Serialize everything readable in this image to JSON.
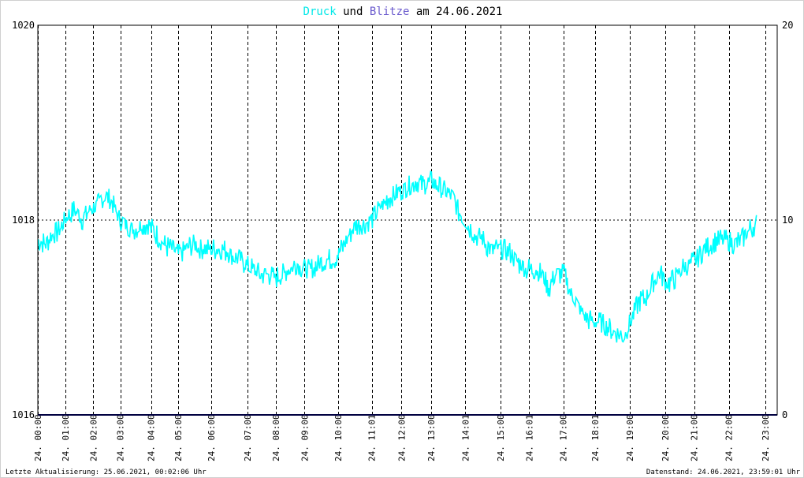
{
  "title": {
    "part1": "Druck",
    "part2": " und ",
    "part3": "Blitze",
    "part4": " am 24.06.2021",
    "color_druck": "#00e8e8",
    "color_blitze": "#6a5acd",
    "color_rest": "#000000"
  },
  "footer": {
    "left": "Letzte Aktualisierung: 25.06.2021, 00:02:06 Uhr",
    "right": "Datenstand: 24.06.2021, 23:59:01 Uhr"
  },
  "chart_data": {
    "type": "line",
    "title": "Druck und Blitze am 24.06.2021",
    "left_axis": {
      "range": [
        1016,
        1020
      ],
      "ticks": [
        "1020",
        "1018",
        "1016"
      ]
    },
    "right_axis": {
      "range": [
        0,
        20
      ],
      "ticks": [
        "20",
        "10",
        "0"
      ]
    },
    "x_labels": [
      "24. 00:00",
      "24. 01:00",
      "24. 02:00",
      "24. 03:00",
      "24. 04:00",
      "24. 05:00",
      "24. 06:00",
      "24. 07:00",
      "24. 08:00",
      "24. 09:00",
      "24. 10:00",
      "24. 11:01",
      "24. 12:00",
      "24. 13:00",
      "24. 14:01",
      "24. 15:00",
      "24. 16:01",
      "24. 17:00",
      "24. 18:01",
      "24. 19:00",
      "24. 20:00",
      "24. 21:00",
      "24. 22:00",
      "24. 23:00"
    ],
    "x_positions_hours": [
      0,
      0.93,
      1.87,
      2.78,
      3.82,
      4.73,
      5.85,
      7.07,
      8.03,
      9.0,
      10.13,
      11.27,
      12.27,
      13.27,
      14.43,
      15.62,
      16.58,
      17.73,
      18.8,
      19.97,
      21.17,
      22.15,
      23.32,
      24.55
    ],
    "grid": true,
    "series": [
      {
        "name": "Druck",
        "color": "#00ffff",
        "axis": "left",
        "points": [
          [
            0,
            1017.8
          ],
          [
            0.25,
            1017.75
          ],
          [
            0.5,
            1017.85
          ],
          [
            0.75,
            1017.9
          ],
          [
            1.0,
            1018.05
          ],
          [
            1.25,
            1018.1
          ],
          [
            1.5,
            1018.0
          ],
          [
            1.75,
            1018.1
          ],
          [
            2.0,
            1018.15
          ],
          [
            2.25,
            1018.25
          ],
          [
            2.5,
            1018.2
          ],
          [
            2.75,
            1018.0
          ],
          [
            3.0,
            1017.95
          ],
          [
            3.25,
            1017.9
          ],
          [
            3.5,
            1017.95
          ],
          [
            3.75,
            1017.95
          ],
          [
            4.0,
            1017.85
          ],
          [
            4.25,
            1017.75
          ],
          [
            4.5,
            1017.7
          ],
          [
            4.75,
            1017.65
          ],
          [
            5.0,
            1017.7
          ],
          [
            5.25,
            1017.75
          ],
          [
            5.5,
            1017.7
          ],
          [
            5.75,
            1017.7
          ],
          [
            6.0,
            1017.7
          ],
          [
            6.25,
            1017.7
          ],
          [
            6.5,
            1017.65
          ],
          [
            6.75,
            1017.6
          ],
          [
            7.0,
            1017.55
          ],
          [
            7.25,
            1017.5
          ],
          [
            7.5,
            1017.45
          ],
          [
            7.75,
            1017.45
          ],
          [
            8.0,
            1017.4
          ],
          [
            8.25,
            1017.45
          ],
          [
            8.5,
            1017.5
          ],
          [
            8.75,
            1017.55
          ],
          [
            9.0,
            1017.5
          ],
          [
            9.25,
            1017.5
          ],
          [
            9.5,
            1017.55
          ],
          [
            9.75,
            1017.6
          ],
          [
            10.0,
            1017.6
          ],
          [
            10.25,
            1017.7
          ],
          [
            10.5,
            1017.85
          ],
          [
            10.75,
            1017.95
          ],
          [
            11.0,
            1017.95
          ],
          [
            11.25,
            1018.0
          ],
          [
            11.5,
            1018.1
          ],
          [
            11.75,
            1018.2
          ],
          [
            12.0,
            1018.25
          ],
          [
            12.25,
            1018.3
          ],
          [
            12.5,
            1018.35
          ],
          [
            12.75,
            1018.4
          ],
          [
            13.0,
            1018.35
          ],
          [
            13.25,
            1018.4
          ],
          [
            13.5,
            1018.35
          ],
          [
            13.75,
            1018.3
          ],
          [
            14.0,
            1018.25
          ],
          [
            14.25,
            1018.05
          ],
          [
            14.5,
            1017.95
          ],
          [
            14.75,
            1017.85
          ],
          [
            15.0,
            1017.8
          ],
          [
            15.25,
            1017.7
          ],
          [
            15.5,
            1017.7
          ],
          [
            15.75,
            1017.7
          ],
          [
            16.0,
            1017.65
          ],
          [
            16.25,
            1017.55
          ],
          [
            16.5,
            1017.5
          ],
          [
            16.75,
            1017.5
          ],
          [
            17.0,
            1017.45
          ],
          [
            17.25,
            1017.3
          ],
          [
            17.5,
            1017.45
          ],
          [
            17.75,
            1017.45
          ],
          [
            18.0,
            1017.25
          ],
          [
            18.25,
            1017.1
          ],
          [
            18.5,
            1017.0
          ],
          [
            18.75,
            1016.95
          ],
          [
            19.0,
            1016.95
          ],
          [
            19.25,
            1016.9
          ],
          [
            19.5,
            1016.85
          ],
          [
            19.75,
            1016.8
          ],
          [
            20.0,
            1016.95
          ],
          [
            20.25,
            1017.15
          ],
          [
            20.5,
            1017.2
          ],
          [
            20.75,
            1017.35
          ],
          [
            21.0,
            1017.45
          ],
          [
            21.25,
            1017.35
          ],
          [
            21.5,
            1017.4
          ],
          [
            21.75,
            1017.5
          ],
          [
            22.0,
            1017.55
          ],
          [
            22.25,
            1017.6
          ],
          [
            22.5,
            1017.7
          ],
          [
            22.75,
            1017.75
          ],
          [
            23.0,
            1017.8
          ],
          [
            23.25,
            1017.8
          ],
          [
            23.5,
            1017.75
          ],
          [
            23.75,
            1017.8
          ],
          [
            24.0,
            1017.9
          ],
          [
            24.25,
            1017.95
          ]
        ]
      },
      {
        "name": "Blitze",
        "color": "#000080",
        "axis": "right",
        "points": [
          [
            0,
            0
          ],
          [
            24.95,
            0
          ]
        ]
      }
    ]
  }
}
